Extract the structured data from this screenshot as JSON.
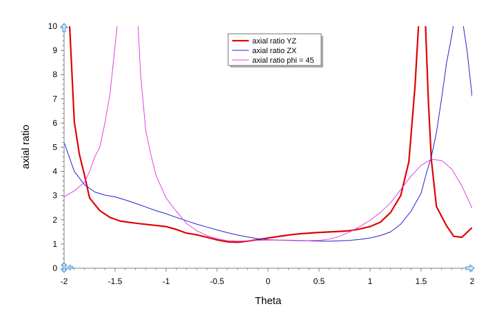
{
  "chart_data": {
    "type": "line",
    "xlabel": "Theta",
    "ylabel": "axial ratio",
    "xlim": [
      -2,
      2
    ],
    "ylim": [
      0,
      10
    ],
    "x_ticks": [
      "-2",
      "-1.5",
      "-1",
      "-0.5",
      "0",
      "0.5",
      "1",
      "1.5",
      "2"
    ],
    "y_ticks": [
      "0",
      "1",
      "2",
      "3",
      "4",
      "5",
      "6",
      "7",
      "8",
      "9",
      "10"
    ],
    "grid": false,
    "legend_position": "top-center",
    "series": [
      {
        "name": "axial ratio YZ",
        "color": "#e00000",
        "width": 2.2,
        "points": [
          [
            -1.95,
            10.4
          ],
          [
            -1.9,
            6.05
          ],
          [
            -1.85,
            4.7
          ],
          [
            -1.8,
            3.85
          ],
          [
            -1.75,
            2.9
          ],
          [
            -1.65,
            2.38
          ],
          [
            -1.55,
            2.1
          ],
          [
            -1.45,
            1.95
          ],
          [
            -1.3,
            1.86
          ],
          [
            -1.15,
            1.79
          ],
          [
            -1.0,
            1.72
          ],
          [
            -0.9,
            1.6
          ],
          [
            -0.8,
            1.45
          ],
          [
            -0.7,
            1.38
          ],
          [
            -0.6,
            1.28
          ],
          [
            -0.5,
            1.17
          ],
          [
            -0.4,
            1.09
          ],
          [
            -0.3,
            1.07
          ],
          [
            -0.2,
            1.12
          ],
          [
            -0.1,
            1.18
          ],
          [
            0.0,
            1.25
          ],
          [
            0.1,
            1.31
          ],
          [
            0.2,
            1.37
          ],
          [
            0.3,
            1.42
          ],
          [
            0.4,
            1.45
          ],
          [
            0.5,
            1.48
          ],
          [
            0.6,
            1.5
          ],
          [
            0.7,
            1.52
          ],
          [
            0.8,
            1.55
          ],
          [
            0.9,
            1.62
          ],
          [
            1.0,
            1.72
          ],
          [
            1.1,
            1.9
          ],
          [
            1.2,
            2.3
          ],
          [
            1.3,
            3.0
          ],
          [
            1.38,
            4.4
          ],
          [
            1.44,
            7.5
          ],
          [
            1.48,
            10.4
          ],
          [
            1.54,
            10.4
          ],
          [
            1.57,
            7.0
          ],
          [
            1.6,
            4.5
          ],
          [
            1.65,
            2.55
          ],
          [
            1.75,
            1.75
          ],
          [
            1.82,
            1.32
          ],
          [
            1.9,
            1.28
          ],
          [
            1.95,
            1.48
          ],
          [
            2.0,
            1.68
          ]
        ]
      },
      {
        "name": "axial ratio ZX",
        "color": "#2020d0",
        "width": 1,
        "points": [
          [
            -2.0,
            5.2
          ],
          [
            -1.9,
            4.0
          ],
          [
            -1.8,
            3.45
          ],
          [
            -1.7,
            3.15
          ],
          [
            -1.6,
            3.02
          ],
          [
            -1.5,
            2.95
          ],
          [
            -1.4,
            2.82
          ],
          [
            -1.3,
            2.68
          ],
          [
            -1.2,
            2.53
          ],
          [
            -1.1,
            2.38
          ],
          [
            -1.0,
            2.25
          ],
          [
            -0.9,
            2.1
          ],
          [
            -0.8,
            1.96
          ],
          [
            -0.7,
            1.82
          ],
          [
            -0.6,
            1.7
          ],
          [
            -0.5,
            1.58
          ],
          [
            -0.4,
            1.47
          ],
          [
            -0.3,
            1.37
          ],
          [
            -0.2,
            1.29
          ],
          [
            -0.1,
            1.22
          ],
          [
            0.0,
            1.18
          ],
          [
            0.1,
            1.16
          ],
          [
            0.2,
            1.15
          ],
          [
            0.3,
            1.14
          ],
          [
            0.4,
            1.13
          ],
          [
            0.5,
            1.12
          ],
          [
            0.6,
            1.12
          ],
          [
            0.7,
            1.13
          ],
          [
            0.8,
            1.15
          ],
          [
            0.9,
            1.19
          ],
          [
            1.0,
            1.25
          ],
          [
            1.1,
            1.35
          ],
          [
            1.2,
            1.5
          ],
          [
            1.3,
            1.82
          ],
          [
            1.4,
            2.35
          ],
          [
            1.5,
            3.1
          ],
          [
            1.55,
            3.9
          ],
          [
            1.6,
            4.6
          ],
          [
            1.65,
            5.6
          ],
          [
            1.7,
            7.0
          ],
          [
            1.75,
            8.5
          ],
          [
            1.8,
            9.6
          ],
          [
            1.83,
            10.4
          ],
          [
            1.9,
            10.4
          ],
          [
            1.95,
            9.0
          ],
          [
            2.0,
            7.1
          ]
        ]
      },
      {
        "name": "axial ratio phi = 45",
        "color": "#e040e0",
        "width": 1,
        "points": [
          [
            -2.0,
            2.95
          ],
          [
            -1.9,
            3.2
          ],
          [
            -1.8,
            3.55
          ],
          [
            -1.75,
            4.0
          ],
          [
            -1.7,
            4.6
          ],
          [
            -1.65,
            5.0
          ],
          [
            -1.6,
            6.0
          ],
          [
            -1.55,
            7.2
          ],
          [
            -1.5,
            9.2
          ],
          [
            -1.47,
            10.4
          ],
          [
            -1.28,
            10.4
          ],
          [
            -1.25,
            8.0
          ],
          [
            -1.2,
            5.7
          ],
          [
            -1.15,
            4.7
          ],
          [
            -1.1,
            3.85
          ],
          [
            -1.0,
            2.9
          ],
          [
            -0.9,
            2.35
          ],
          [
            -0.8,
            1.85
          ],
          [
            -0.7,
            1.55
          ],
          [
            -0.6,
            1.35
          ],
          [
            -0.5,
            1.22
          ],
          [
            -0.4,
            1.14
          ],
          [
            -0.3,
            1.12
          ],
          [
            -0.2,
            1.13
          ],
          [
            -0.1,
            1.15
          ],
          [
            0.0,
            1.16
          ],
          [
            0.1,
            1.16
          ],
          [
            0.2,
            1.16
          ],
          [
            0.3,
            1.15
          ],
          [
            0.4,
            1.14
          ],
          [
            0.5,
            1.15
          ],
          [
            0.6,
            1.2
          ],
          [
            0.7,
            1.32
          ],
          [
            0.8,
            1.5
          ],
          [
            0.9,
            1.72
          ],
          [
            1.0,
            1.98
          ],
          [
            1.1,
            2.3
          ],
          [
            1.2,
            2.7
          ],
          [
            1.3,
            3.25
          ],
          [
            1.4,
            3.8
          ],
          [
            1.5,
            4.25
          ],
          [
            1.6,
            4.5
          ],
          [
            1.7,
            4.45
          ],
          [
            1.8,
            4.1
          ],
          [
            1.9,
            3.4
          ],
          [
            2.0,
            2.48
          ]
        ]
      }
    ]
  }
}
